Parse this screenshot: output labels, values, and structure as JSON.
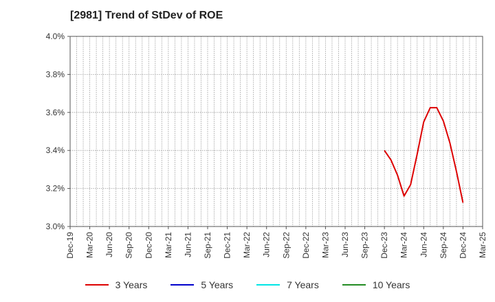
{
  "chart_data": {
    "type": "line",
    "title": "[2981]  Trend of StDev of ROE",
    "xlabel": "",
    "ylabel": "",
    "ylim": [
      3.0,
      4.0
    ],
    "y_ticks": [
      "4.0%",
      "3.8%",
      "3.6%",
      "3.4%",
      "3.2%",
      "3.0%"
    ],
    "y_tick_values": [
      4.0,
      3.8,
      3.6,
      3.4,
      3.2,
      3.0
    ],
    "x_ticks": [
      "Dec-19",
      "Mar-20",
      "Jun-20",
      "Sep-20",
      "Dec-20",
      "Mar-21",
      "Jun-21",
      "Sep-21",
      "Dec-21",
      "Mar-22",
      "Jun-22",
      "Sep-22",
      "Dec-22",
      "Mar-23",
      "Jun-23",
      "Sep-23",
      "Dec-23",
      "Mar-24",
      "Jun-24",
      "Sep-24",
      "Dec-24",
      "Mar-25"
    ],
    "x_month_count": 63,
    "grid": true,
    "legend_position": "bottom",
    "series": [
      {
        "name": "3 Years",
        "color": "#dd0000",
        "x_month_index": [
          48,
          49,
          50,
          51,
          52,
          53,
          54,
          55,
          56,
          57,
          58,
          59,
          60
        ],
        "values": [
          3.4,
          3.35,
          3.27,
          3.16,
          3.22,
          3.38,
          3.55,
          3.625,
          3.625,
          3.555,
          3.44,
          3.29,
          3.125
        ]
      },
      {
        "name": "5 Years",
        "color": "#0000cc",
        "x_month_index": [],
        "values": []
      },
      {
        "name": "7 Years",
        "color": "#00e5e5",
        "x_month_index": [],
        "values": []
      },
      {
        "name": "10 Years",
        "color": "#228b22",
        "x_month_index": [],
        "values": []
      }
    ]
  }
}
